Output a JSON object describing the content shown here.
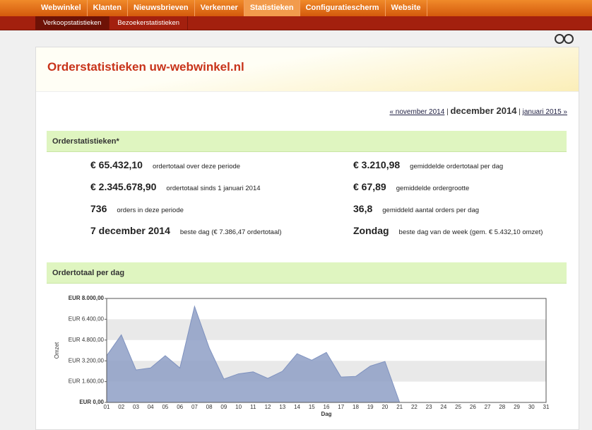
{
  "nav": {
    "items": [
      "Webwinkel",
      "Klanten",
      "Nieuwsbrieven",
      "Verkenner",
      "Statistieken",
      "Configuratiescherm",
      "Website"
    ],
    "active": 4
  },
  "subnav": {
    "items": [
      "Verkoopstatistieken",
      "Bezoekerstatistieken"
    ],
    "active": 0
  },
  "header": {
    "title": "Orderstatistieken uw-webwinkel.nl"
  },
  "month_nav": {
    "prev": "« november 2014",
    "separator": "|",
    "current": "december 2014",
    "next": "januari 2015 »"
  },
  "stats": {
    "title": "Orderstatistieken*",
    "items": [
      {
        "value": "€ 65.432,10",
        "label": "ordertotaal over deze periode"
      },
      {
        "value": "€ 3.210,98",
        "label": "gemiddelde ordertotaal per dag"
      },
      {
        "value": "€ 2.345.678,90",
        "label": "ordertotaal sinds 1 januari 2014"
      },
      {
        "value": "€ 67,89",
        "label": "gemiddelde ordergrootte"
      },
      {
        "value": "736",
        "label": "orders in deze periode"
      },
      {
        "value": "36,8",
        "label": "gemiddeld aantal orders per dag"
      },
      {
        "value": "7 december 2014",
        "label": "beste dag (€ 7.386,47 ordertotaal)"
      },
      {
        "value": "Zondag",
        "label": "beste dag van de week (gem. € 5.432,10 omzet)"
      }
    ]
  },
  "chart_section": {
    "title": "Ordertotaal per dag"
  },
  "chart_data": {
    "type": "area",
    "x_label": "Dag",
    "y_label": "Omzet",
    "categories": [
      "01",
      "02",
      "03",
      "04",
      "05",
      "06",
      "07",
      "08",
      "09",
      "10",
      "11",
      "12",
      "13",
      "14",
      "15",
      "16",
      "17",
      "18",
      "19",
      "20",
      "21",
      "22",
      "23",
      "24",
      "25",
      "26",
      "27",
      "28",
      "29",
      "30",
      "31"
    ],
    "series": [
      {
        "name": "Ordertotaal",
        "color": "#8e9fc6",
        "values": [
          3600,
          5200,
          2500,
          2650,
          3600,
          2650,
          7386,
          4200,
          1800,
          2200,
          2350,
          1850,
          2400,
          3750,
          3250,
          3850,
          1950,
          2000,
          2800,
          3150,
          0,
          null,
          null,
          null,
          null,
          null,
          null,
          null,
          null,
          null,
          null
        ]
      }
    ],
    "ylim": [
      0,
      8000
    ],
    "yticks": [
      {
        "value": 0,
        "label": "EUR 0,00"
      },
      {
        "value": 1600,
        "label": "EUR 1.600,00"
      },
      {
        "value": 3200,
        "label": "EUR 3.200,00"
      },
      {
        "value": 4800,
        "label": "EUR 4.800,00"
      },
      {
        "value": 6400,
        "label": "EUR 6.400,00"
      },
      {
        "value": 8000,
        "label": "EUR 8.000,00"
      }
    ],
    "grid": true
  }
}
